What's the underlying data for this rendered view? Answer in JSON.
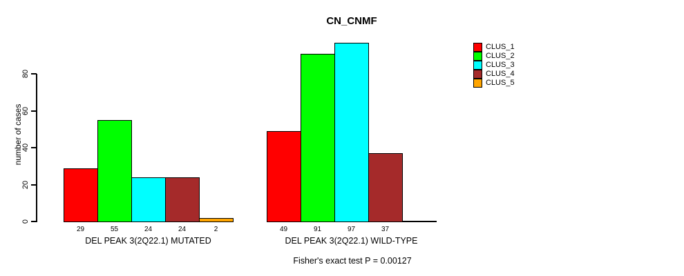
{
  "title": "CN_CNMF",
  "footnote": "Fisher's exact test P = 0.00127",
  "chart_data": {
    "type": "bar",
    "title": "CN_CNMF",
    "xlabel": "",
    "ylabel": "number of cases",
    "yticks": [
      0,
      20,
      40,
      60,
      80
    ],
    "ylim": [
      0,
      100
    ],
    "grid": false,
    "legend_position": "right",
    "series": [
      {
        "name": "CLUS_1",
        "color": "#ff0000"
      },
      {
        "name": "CLUS_2",
        "color": "#00ff00"
      },
      {
        "name": "CLUS_3",
        "color": "#00ffff"
      },
      {
        "name": "CLUS_4",
        "color": "#a52a2a"
      },
      {
        "name": "CLUS_5",
        "color": "#ffa500"
      }
    ],
    "groups": [
      {
        "label": "DEL PEAK 3(2Q22.1) MUTATED",
        "values": [
          29,
          55,
          24,
          24,
          2
        ],
        "value_labels": [
          "29",
          "55",
          "24",
          "24",
          "2"
        ]
      },
      {
        "label": "DEL PEAK 3(2Q22.1) WILD-TYPE",
        "values": [
          49,
          91,
          97,
          37,
          0
        ],
        "value_labels": [
          "49",
          "91",
          "97",
          "37",
          ""
        ]
      }
    ],
    "annotation": "Fisher's exact test P = 0.00127"
  }
}
